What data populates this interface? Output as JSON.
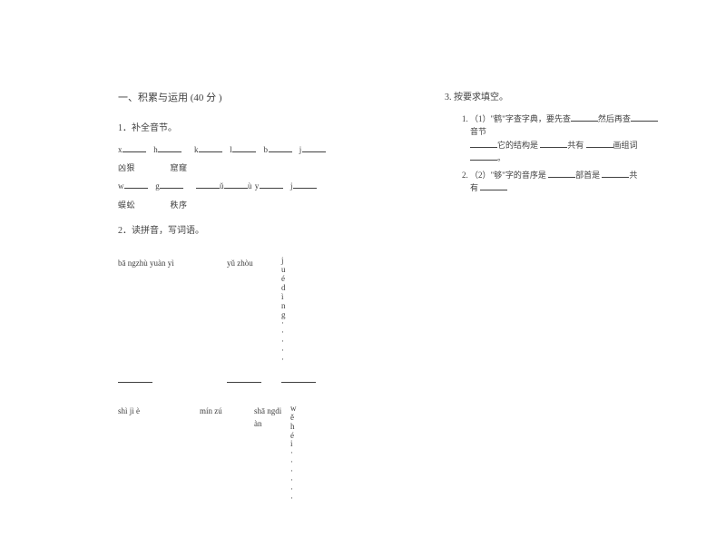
{
  "left": {
    "section_title": "一、积累与运用  (40 分 )",
    "q1": {
      "head": "1．补全音节。",
      "row1": {
        "a": "x",
        "b": "h",
        "c": "k",
        "d": "l",
        "e": "b",
        "f": "j"
      },
      "row2": {
        "a": "凶狠",
        "b": "窟窿"
      },
      "row3": {
        "a": "w",
        "b": "g",
        "c": "",
        "d": "ǔ",
        "e": "ù y",
        "f": "j"
      },
      "row4": {
        "a": "蜈蚣",
        "b": "秩序"
      }
    },
    "q2": {
      "head": "2．读拼音，写词语。",
      "r1": {
        "a": "bā ngzhù yuàn  yì",
        "b": "yǔ zhòu",
        "c_chars": [
          "j",
          "u",
          "é",
          "d",
          "ì",
          "n",
          "g",
          "·",
          "·",
          "·",
          "·",
          "·"
        ]
      },
      "r2": {
        "a": "shì jì è",
        "b": "mín  zú",
        "c": "shā ngdi\nàn",
        "d_chars": [
          "w",
          "ě",
          "h",
          "é",
          "i",
          "·",
          "·",
          "·",
          "·",
          "·",
          "·"
        ]
      }
    }
  },
  "right": {
    "q3": {
      "title_label": "3.",
      "title_text": "按要求填空。",
      "items": [
        {
          "pre": "（1）\"鹤\"字查字典，要先查",
          "mid1": "然后再查",
          "line2a": "音节",
          "line2b": "它的结构是",
          "line2c": "共有",
          "line2d": "画组词",
          "tail": "。"
        },
        {
          "pre": "（2）\"够\"字的音序是",
          "mid": "部首是",
          "tail": "共",
          "line2": "有"
        }
      ]
    }
  },
  "style": {
    "text_color": "#404040",
    "bg": "#ffffff",
    "font_family": "SimSun",
    "base_fontsize_pt": 10
  }
}
